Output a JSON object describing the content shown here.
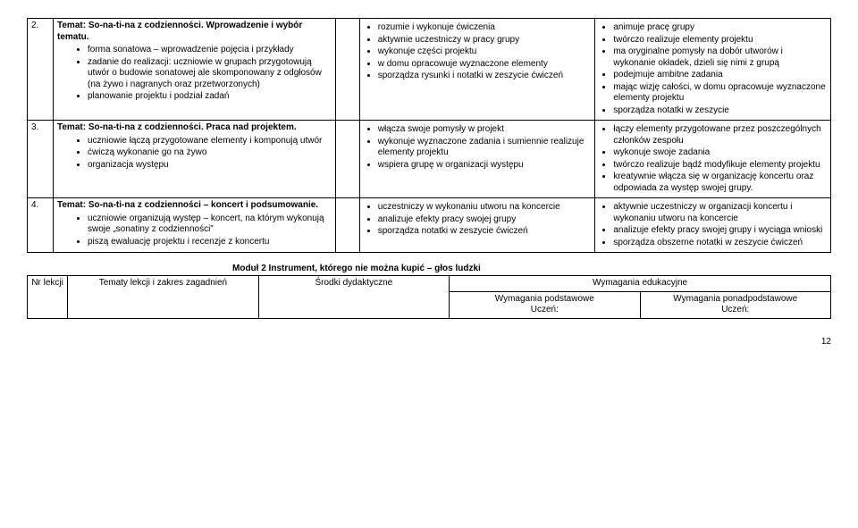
{
  "table1": {
    "rows": [
      {
        "num": "2.",
        "topic_title": "Temat: So-na-ti-na z codzienności. Wprowadzenie i wybór tematu.",
        "topic_bullets": [
          "forma sonatowa – wprowadzenie pojęcia i przykłady",
          "zadanie do realizacji: uczniowie w grupach przygotowują utwór o budowie sonatowej ale skomponowany z odgłosów (na żywo i nagranych oraz przetworzonych)",
          "planowanie projektu i podział zadań"
        ],
        "empty_mid": "",
        "req1": [
          "rozumie i wykonuje ćwiczenia",
          "aktywnie uczestniczy w pracy grupy",
          "wykonuje części projektu",
          "w domu opracowuje wyznaczone elementy",
          "sporządza rysunki i notatki w zeszycie ćwiczeń"
        ],
        "req2": [
          "animuje pracę grupy",
          "twórczo realizuje elementy projektu",
          "ma oryginalne pomysły na dobór utworów i wykonanie okładek, dzieli się nimi z grupą",
          "podejmuje ambitne zadania",
          "mając wizję całości, w domu opracowuje wyznaczone elementy projektu",
          "sporządza notatki w zeszycie"
        ]
      },
      {
        "num": "3.",
        "topic_title": "Temat: So-na-ti-na z codzienności. Praca nad projektem.",
        "topic_bullets": [
          "uczniowie łączą przygotowane elementy i komponują utwór",
          "ćwiczą wykonanie go na żywo",
          "organizacja występu"
        ],
        "empty_mid": "",
        "req1": [
          "włącza swoje pomysły w projekt",
          "wykonuje wyznaczone zadania i sumiennie realizuje elementy projektu",
          "wspiera grupę w organizacji występu"
        ],
        "req2": [
          "łączy elementy przygotowane przez poszczególnych członków zespołu",
          "wykonuje swoje zadania",
          "twórczo realizuje bądź modyfikuje elementy projektu",
          "kreatywnie włącza się w organizację koncertu oraz odpowiada za występ swojej grupy."
        ]
      },
      {
        "num": "4.",
        "topic_title": "Temat: So-na-ti-na z codzienności – koncert i podsumowanie.",
        "topic_bullets": [
          "uczniowie organizują występ – koncert, na którym wykonują swoje „sonatiny z codzienności”",
          "piszą ewaluację projektu i recenzje z koncertu"
        ],
        "empty_mid": "",
        "req1": [
          "uczestniczy w wykonaniu utworu na koncercie",
          "analizuje efekty pracy swojej grupy",
          "sporządza notatki w zeszycie ćwiczeń"
        ],
        "req2": [
          "aktywnie uczestniczy w organizacji koncertu i wykonaniu utworu na koncercie",
          "analizuje efekty pracy swojej grupy i wyciąga wnioski",
          "sporządza obszerne notatki w zeszycie ćwiczeń"
        ]
      }
    ]
  },
  "module_title": "Moduł 2 Instrument, którego nie można kupić – głos ludzki",
  "table2": {
    "h_nr": "Nr lekcji",
    "h_topics": "Tematy lekcji i zakres zagadnień",
    "h_srodki": "Środki dydaktyczne",
    "h_wym_edu": "Wymagania edukacyjne",
    "h_wym_pod": "Wymagania podstawowe",
    "h_uczen1": "Uczeń:",
    "h_wym_ponad": "Wymagania ponadpodstawowe",
    "h_uczen2": "Uczeń:"
  },
  "page": "12"
}
